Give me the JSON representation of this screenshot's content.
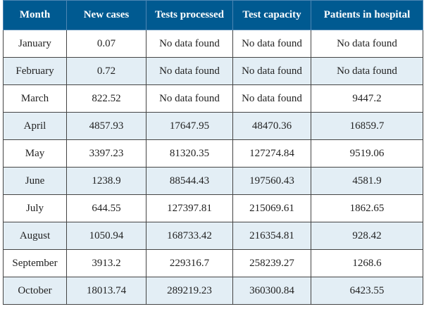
{
  "columns": [
    "Month",
    "New cases",
    "Tests processed",
    "Test capacity",
    "Patients in hospital"
  ],
  "rows": [
    [
      "January",
      "0.07",
      "No data found",
      "No data found",
      "No data found"
    ],
    [
      "February",
      "0.72",
      "No data found",
      "No data found",
      "No data found"
    ],
    [
      "March",
      "822.52",
      "No data found",
      "No data found",
      "9447.2"
    ],
    [
      "April",
      "4857.93",
      "17647.95",
      "48470.36",
      "16859.7"
    ],
    [
      "May",
      "3397.23",
      "81320.35",
      "127274.84",
      "9519.06"
    ],
    [
      "June",
      "1238.9",
      "88544.43",
      "197560.43",
      "4581.9"
    ],
    [
      "July",
      "644.55",
      "127397.81",
      "215069.61",
      "1862.65"
    ],
    [
      "August",
      "1050.94",
      "168733.42",
      "216354.81",
      "928.42"
    ],
    [
      "September",
      "3913.2",
      "229316.7",
      "258239.27",
      "1268.6"
    ],
    [
      "October",
      "18013.74",
      "289219.23",
      "360300.84",
      "6423.55"
    ]
  ],
  "colors": {
    "header_bg": "#005a91",
    "stripe_bg": "#e3eef5"
  }
}
